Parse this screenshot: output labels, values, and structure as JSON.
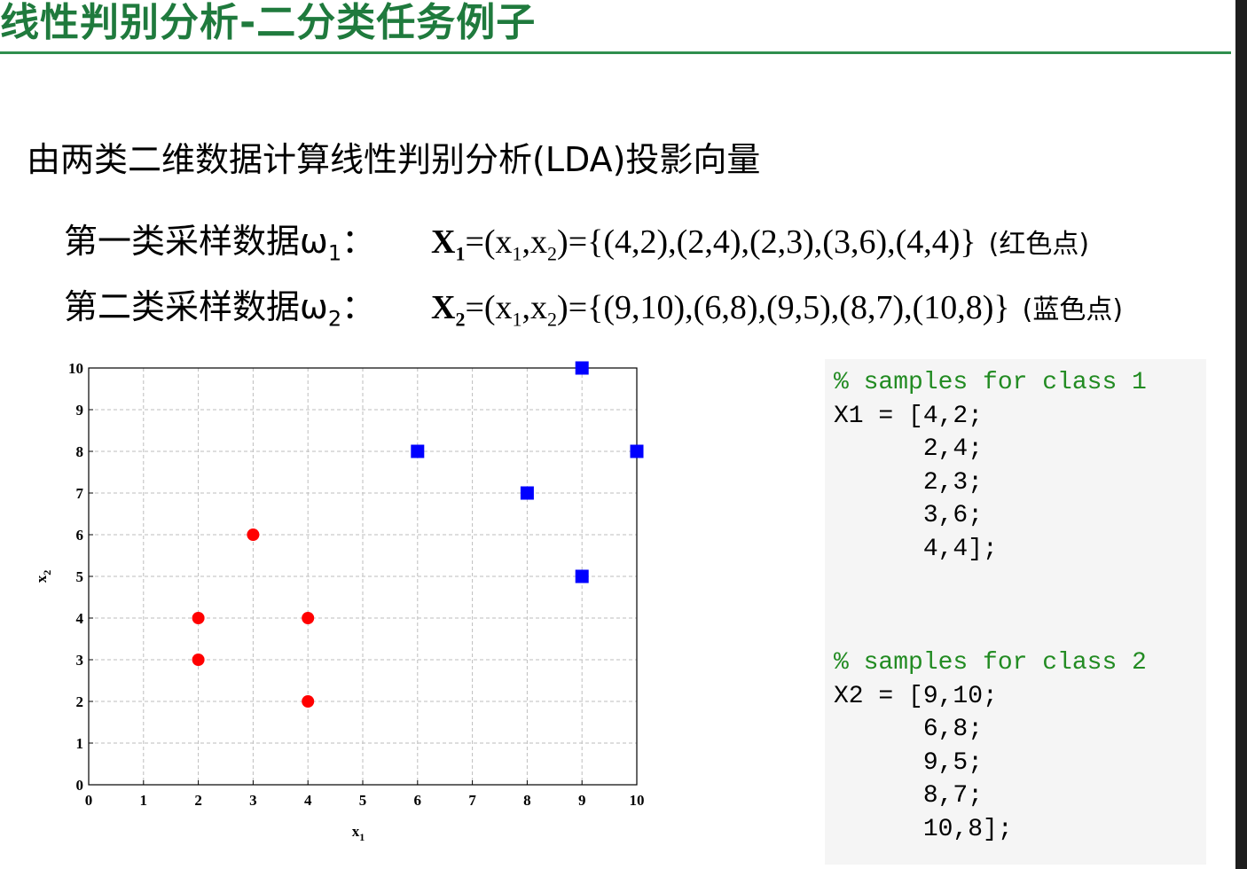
{
  "slide": {
    "title": "线性判别分析-二分类任务例子",
    "subtitle": "由两类二维数据计算线性判别分析(LDA)投影向量",
    "class1": {
      "label": "第一类采样数据ω",
      "label_sub": "1",
      "label_colon": "：",
      "formula_var": "X",
      "formula_var_sub": "1",
      "formula_mid": "=(x",
      "formula_x1_sub": "1",
      "formula_comma": ",x",
      "formula_x2_sub": "2",
      "formula_set": ")={(4,2),(2,4),(2,3),(3,6),(4,4)}",
      "note": "(红色点)"
    },
    "class2": {
      "label": "第二类采样数据ω",
      "label_sub": "2",
      "label_colon": "：",
      "formula_var": "X",
      "formula_var_sub": "2",
      "formula_mid": "=(x",
      "formula_x1_sub": "1",
      "formula_comma": ",x",
      "formula_x2_sub": "2",
      "formula_set": ")={(9,10),(6,8),(9,5),(8,7),(10,8)}",
      "note": "(蓝色点)"
    }
  },
  "code": {
    "block1_comment": "% samples for class 1",
    "block1_lines": "X1 = [4,2;\n      2,4;\n      2,3;\n      3,6;\n      4,4];",
    "block2_comment": "% samples for class 2",
    "block2_lines": "X2 = [9,10;\n      6,8;\n      9,5;\n      8,7;\n      10,8];"
  },
  "chart_data": {
    "type": "scatter",
    "xlabel": "x",
    "xlabel_sub": "1",
    "ylabel": "x",
    "ylabel_sub": "2",
    "xlim": [
      0,
      10
    ],
    "ylim": [
      0,
      10
    ],
    "xticks": [
      "0",
      "1",
      "2",
      "3",
      "4",
      "5",
      "6",
      "7",
      "8",
      "9",
      "10"
    ],
    "yticks": [
      "0",
      "1",
      "2",
      "3",
      "4",
      "5",
      "6",
      "7",
      "8",
      "9",
      "10"
    ],
    "grid": true,
    "series": [
      {
        "marker": "circle",
        "color": "#ff0000",
        "points": [
          [
            4,
            2
          ],
          [
            2,
            4
          ],
          [
            2,
            3
          ],
          [
            3,
            6
          ],
          [
            4,
            4
          ]
        ]
      },
      {
        "marker": "square",
        "color": "#0000ff",
        "points": [
          [
            9,
            10
          ],
          [
            6,
            8
          ],
          [
            9,
            5
          ],
          [
            8,
            7
          ],
          [
            10,
            8
          ]
        ]
      }
    ]
  }
}
